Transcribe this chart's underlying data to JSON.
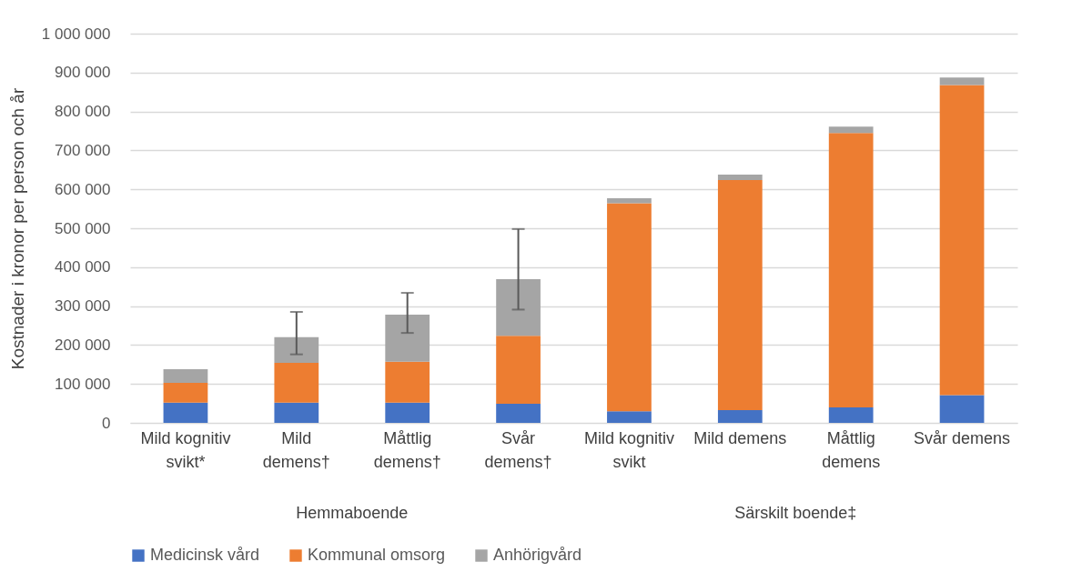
{
  "chart_data": {
    "type": "bar",
    "stacked": true,
    "ylabel": "Kostnader i kronor per person och år",
    "categories": [
      "Mild kognitiv\nsvikt*",
      "Mild\ndemens†",
      "Måttlig\ndemens†",
      "Svår\ndemens†",
      "Mild kognitiv\nsvikt",
      "Mild demens",
      "Måttlig\ndemens",
      "Svår demens"
    ],
    "series": [
      {
        "name": "Medicinsk vård",
        "color": "#4472c4",
        "values": [
          52000,
          52000,
          52000,
          49000,
          30000,
          33000,
          40000,
          71000
        ]
      },
      {
        "name": "Kommunal omsorg",
        "color": "#ed7d31",
        "values": [
          51000,
          102000,
          105000,
          175000,
          534000,
          591000,
          705000,
          797000
        ]
      },
      {
        "name": "Anhörigvård",
        "color": "#a5a5a5",
        "values": [
          35000,
          66000,
          121000,
          145000,
          13000,
          14000,
          16000,
          19000
        ],
        "errors": [
          null,
          [
            176000,
            285000
          ],
          [
            231000,
            334000
          ],
          [
            291000,
            498000
          ],
          null,
          null,
          null,
          null
        ]
      }
    ],
    "annotations": [
      "Hemmaboende",
      "Särskilt boende‡"
    ],
    "ylim": [
      0,
      1000000
    ],
    "yticks": [
      0,
      {
        "value": 100000,
        "label": "100 000"
      },
      {
        "value": 200000,
        "label": "200 000"
      },
      {
        "value": 300000,
        "label": "300 000"
      },
      {
        "value": 400000,
        "label": "400 000"
      },
      {
        "value": 500000,
        "label": "500 000"
      },
      {
        "value": 600000,
        "label": "600 000"
      },
      {
        "value": 700000,
        "label": "700 000"
      },
      {
        "value": 800000,
        "label": "800 000"
      },
      {
        "value": 900000,
        "label": "900 000"
      },
      {
        "value": 1000000,
        "label": "1 000 000"
      }
    ],
    "grid": "y",
    "legend": "bottom"
  }
}
